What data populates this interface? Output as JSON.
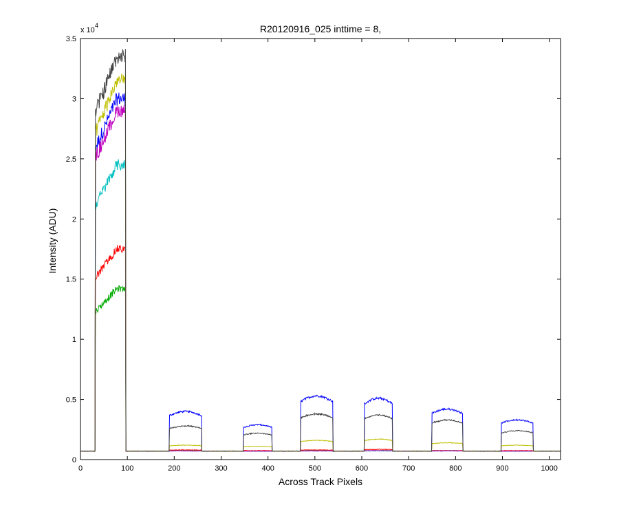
{
  "chart_data": {
    "type": "line",
    "title": "R20120916_025 inttime = 8,",
    "xlabel": "Across Track Pixels",
    "ylabel": "Intensity (ADU)",
    "xlim": [
      0,
      1024
    ],
    "ylim": [
      0,
      35000
    ],
    "x_ticks": [
      0,
      100,
      200,
      300,
      400,
      500,
      600,
      700,
      800,
      900,
      1000
    ],
    "y_ticks": [
      0,
      5000,
      10000,
      15000,
      20000,
      25000,
      30000,
      35000
    ],
    "y_tick_labels": [
      "0",
      "0.5",
      "1",
      "1.5",
      "2",
      "2.5",
      "3",
      "3.5"
    ],
    "y_multiplier": {
      "base": "x 10",
      "exponent": "4"
    },
    "grid": false,
    "baseline": 700,
    "segments": [
      {
        "start": 32,
        "end": 96
      },
      {
        "start": 190,
        "end": 258
      },
      {
        "start": 348,
        "end": 408
      },
      {
        "start": 470,
        "end": 538
      },
      {
        "start": 606,
        "end": 665
      },
      {
        "start": 750,
        "end": 815
      },
      {
        "start": 898,
        "end": 965
      }
    ],
    "series": [
      {
        "color": "#0000ff",
        "peaks": [
          30000,
          4000,
          2900,
          5300,
          5100,
          4200,
          3300
        ]
      },
      {
        "color": "#00aa00",
        "peaks": [
          14200,
          750,
          700,
          750,
          750,
          750,
          700
        ]
      },
      {
        "color": "#ff0000",
        "peaks": [
          17500,
          800,
          750,
          800,
          850,
          750,
          750
        ]
      },
      {
        "color": "#00bfbf",
        "peaks": [
          24500,
          720,
          700,
          720,
          720,
          720,
          700
        ]
      },
      {
        "color": "#bf00bf",
        "peaks": [
          29000,
          720,
          700,
          720,
          750,
          720,
          700
        ]
      },
      {
        "color": "#bfbf00",
        "peaks": [
          31500,
          1200,
          1100,
          1600,
          1700,
          1400,
          1200
        ]
      },
      {
        "color": "#404040",
        "peaks": [
          33500,
          2800,
          2200,
          3800,
          3700,
          3300,
          2400
        ]
      }
    ]
  }
}
